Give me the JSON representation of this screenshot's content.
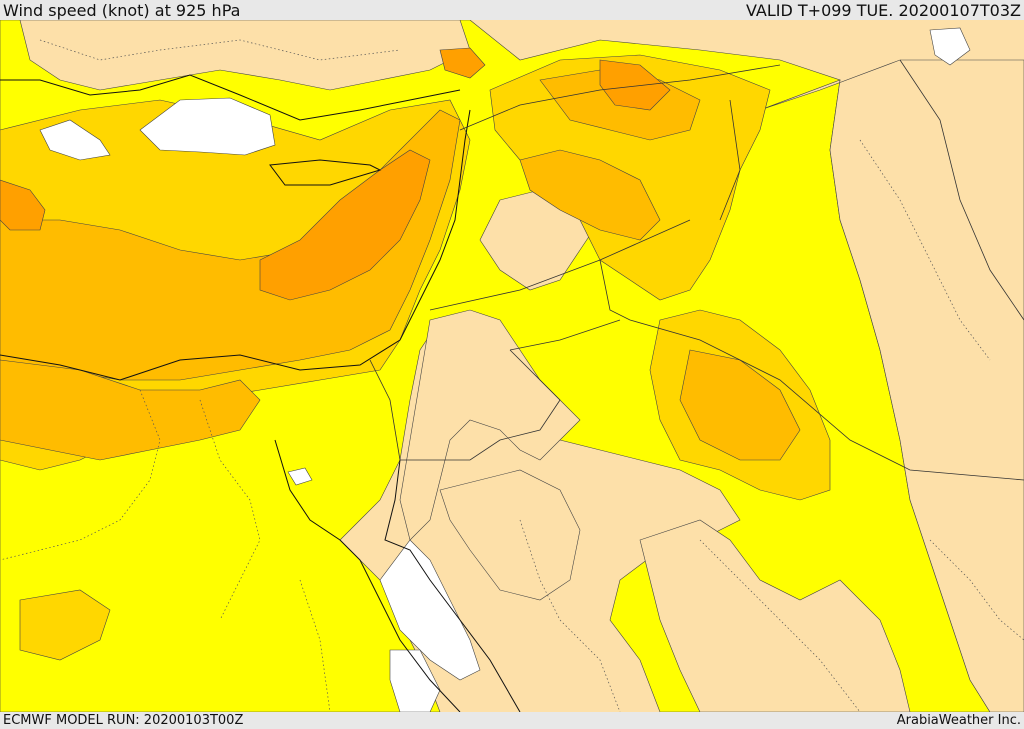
{
  "header": {
    "title": "Wind speed (knot) at 925 hPa",
    "valid": "VALID T+099 TUE. 20200107T03Z"
  },
  "footer": {
    "model_run": "ECMWF MODEL RUN: 20200103T00Z",
    "credit": "ArabiaWeather Inc."
  },
  "colors": {
    "calm_lt5": "#ffffff",
    "band_5_10": "#fde0a9",
    "band_10_15": "#ffff00",
    "band_15_20": "#ffd700",
    "band_20_25": "#ffbc00",
    "band_25_30": "#ffa000",
    "frame": "#e8e8e8"
  }
}
